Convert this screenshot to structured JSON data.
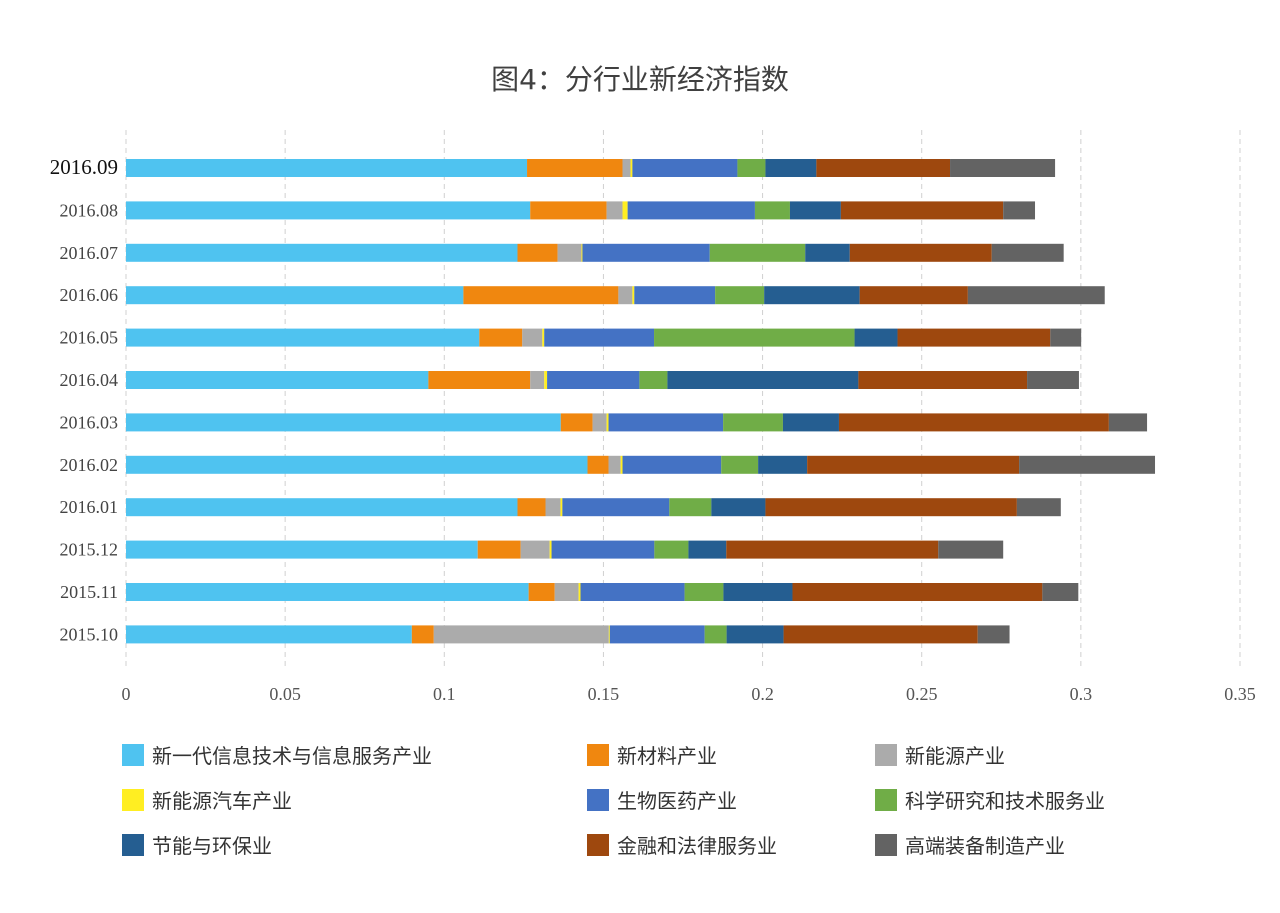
{
  "chart_data": {
    "type": "bar",
    "orientation": "horizontal",
    "stacked": true,
    "title": "图4：分行业新经济指数",
    "xlabel": "",
    "ylabel": "",
    "xlim": [
      0,
      0.35
    ],
    "x_ticks": [
      "0",
      "0.05",
      "0.1",
      "0.15",
      "0.2",
      "0.25",
      "0.3",
      "0.35"
    ],
    "grid": "vertical dashed",
    "legend_position": "bottom",
    "categories": [
      "2016.09",
      "2016.08",
      "2016.07",
      "2016.06",
      "2016.05",
      "2016.04",
      "2016.03",
      "2016.02",
      "2016.01",
      "2015.12",
      "2015.11",
      "2015.10"
    ],
    "series": [
      {
        "name": "新一代信息技术与信息服务产业",
        "color": "#4FC3F0",
        "values": [
          0.126,
          0.127,
          0.123,
          0.106,
          0.111,
          0.095,
          0.1366,
          0.145,
          0.123,
          0.1105,
          0.1265,
          0.0898
        ]
      },
      {
        "name": "新材料产业",
        "color": "#F0870F",
        "values": [
          0.03,
          0.024,
          0.0126,
          0.0487,
          0.0135,
          0.032,
          0.01,
          0.0066,
          0.0088,
          0.0135,
          0.0082,
          0.0069
        ]
      },
      {
        "name": "新能源产业",
        "color": "#ABABAB",
        "values": [
          0.0025,
          0.005,
          0.0075,
          0.0044,
          0.0063,
          0.0044,
          0.0044,
          0.0038,
          0.0047,
          0.0091,
          0.0075,
          0.055
        ]
      },
      {
        "name": "新能源汽车产业",
        "color": "#FFEE22",
        "values": [
          0.0006,
          0.0016,
          0.0003,
          0.0006,
          0.0006,
          0.0009,
          0.0006,
          0.0006,
          0.0006,
          0.0006,
          0.0006,
          0.0003
        ]
      },
      {
        "name": "生物医药产业",
        "color": "#4472C4",
        "values": [
          0.033,
          0.04,
          0.04,
          0.0254,
          0.0345,
          0.029,
          0.036,
          0.031,
          0.0336,
          0.0323,
          0.0327,
          0.0298
        ]
      },
      {
        "name": "科学研究和技术服务业",
        "color": "#70AD47",
        "values": [
          0.0088,
          0.011,
          0.03,
          0.0154,
          0.063,
          0.0088,
          0.0188,
          0.0116,
          0.0132,
          0.0107,
          0.0122,
          0.0069
        ]
      },
      {
        "name": "节能与环保业",
        "color": "#255E91",
        "values": [
          0.016,
          0.016,
          0.014,
          0.03,
          0.0135,
          0.06,
          0.0176,
          0.0154,
          0.017,
          0.0119,
          0.0217,
          0.0179
        ]
      },
      {
        "name": "金融和法律服务业",
        "color": "#9E480E",
        "values": [
          0.042,
          0.051,
          0.0446,
          0.034,
          0.048,
          0.053,
          0.0848,
          0.0666,
          0.079,
          0.0666,
          0.0785,
          0.061
        ]
      },
      {
        "name": "高端装备制造产业",
        "color": "#636363",
        "values": [
          0.033,
          0.01,
          0.0226,
          0.043,
          0.0097,
          0.0163,
          0.012,
          0.0427,
          0.0138,
          0.0204,
          0.0113,
          0.01
        ]
      }
    ]
  }
}
